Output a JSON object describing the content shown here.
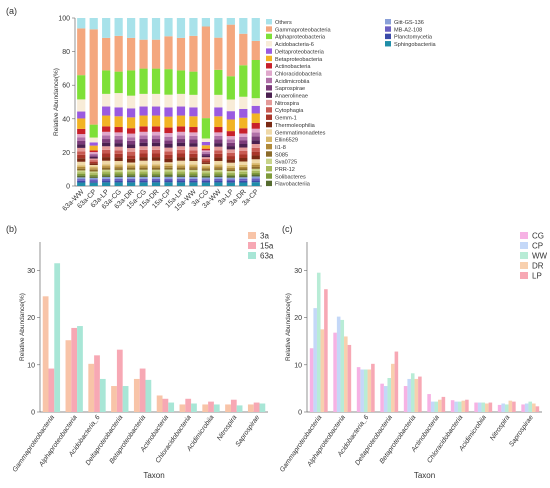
{
  "panels": {
    "a": "(a)",
    "b": "(b)",
    "c": "(c)"
  },
  "chart_data": [
    {
      "type": "bar",
      "stacked": true,
      "ylabel": "Relative Abundance(%)",
      "ylim": [
        0,
        100
      ],
      "yticks": [
        0,
        20,
        40,
        60,
        80,
        100
      ],
      "categories": [
        "63a-WW",
        "63a-CP",
        "63a-LP",
        "63a-CG",
        "63a-DR",
        "15a-CG",
        "15a-DR",
        "15a-CP",
        "15a-LP",
        "15a-WW",
        "3a-CG",
        "3a-WW",
        "3a-LP",
        "3a-DR",
        "3a-CP"
      ],
      "legend_left": [
        "Others",
        "Gammaproteobacteria",
        "Alphaproteobacteria",
        "Acidobacteria-6",
        "Deltaproteobacteria",
        "Betaproteobacteria",
        "Actinobacteria",
        "Chloracidobacteria",
        "Acidimicrobiia",
        "Saprospirae",
        "Anaerolineae",
        "Nitrospira",
        "Cytophagia",
        "Gemm-1",
        "Thermoleophilia",
        "Gemmatimonadetes",
        "Ellin6529",
        "Ii1-8",
        "S085",
        "Sva0725",
        "PRR-12",
        "Solibacteres",
        "Flavobacteriia"
      ],
      "legend_right": [
        "Gitt-GS-136",
        "MB-A2-108",
        "Planctomycetia",
        "Sphingobacteriia"
      ],
      "series": [
        {
          "name": "Sphingobacteriia",
          "color": "#1f8ea8",
          "values": [
            2,
            2,
            2,
            2,
            2,
            2,
            2,
            2,
            2,
            2,
            2,
            2,
            2,
            2,
            2
          ]
        },
        {
          "name": "Planctomycetia",
          "color": "#3a4aa8",
          "values": [
            1,
            1,
            1,
            1,
            1,
            1,
            1,
            1,
            1,
            1,
            1,
            1,
            1,
            1,
            1
          ]
        },
        {
          "name": "MB-A2-108",
          "color": "#6a5fc2",
          "values": [
            1,
            1,
            1,
            1,
            1,
            1,
            1,
            1,
            1,
            1,
            1,
            1,
            1,
            1,
            1
          ]
        },
        {
          "name": "Gitt-GS-136",
          "color": "#8aa0d8",
          "values": [
            1,
            1,
            1,
            1,
            1,
            1,
            1,
            1,
            1,
            1,
            1,
            1,
            1,
            1,
            1
          ]
        },
        {
          "name": "Flavobacteriia",
          "color": "#556b2f",
          "values": [
            1,
            1,
            1,
            1,
            1,
            1,
            1,
            1,
            1,
            1,
            1,
            1,
            1,
            1,
            1
          ]
        },
        {
          "name": "Solibacteres",
          "color": "#7e9a3a",
          "values": [
            1,
            1,
            1,
            1,
            1,
            1,
            1,
            1,
            1,
            1,
            1,
            1,
            1,
            1,
            1
          ]
        },
        {
          "name": "PRR-12",
          "color": "#a6b85a",
          "values": [
            1,
            1,
            1,
            1,
            1,
            1,
            1,
            1,
            1,
            1,
            1,
            1,
            1,
            1,
            1
          ]
        },
        {
          "name": "Sva0725",
          "color": "#c8d48a",
          "values": [
            1,
            1,
            1,
            1,
            1,
            1,
            1,
            1,
            1,
            1,
            1,
            1,
            1,
            1,
            1
          ]
        },
        {
          "name": "S085",
          "color": "#8b6b2a",
          "values": [
            1,
            1,
            1,
            1,
            1,
            1,
            1,
            1,
            1,
            1,
            1,
            1,
            1,
            1,
            1
          ]
        },
        {
          "name": "Ii1-8",
          "color": "#b08a3a",
          "values": [
            1,
            1,
            1,
            1,
            1,
            1,
            1,
            1,
            1,
            1,
            1,
            1,
            1,
            1,
            1
          ]
        },
        {
          "name": "Ellin6529",
          "color": "#d8b86a",
          "values": [
            1,
            1,
            1,
            1,
            1,
            1,
            1,
            1,
            1,
            1,
            1,
            1,
            1,
            1,
            1
          ]
        },
        {
          "name": "Gemmatimonadetes",
          "color": "#efd9a8",
          "values": [
            2,
            1,
            2,
            2,
            1,
            2,
            2,
            1,
            2,
            2,
            1,
            2,
            2,
            2,
            2
          ]
        },
        {
          "name": "Thermoleophilia",
          "color": "#7a2a14",
          "values": [
            2,
            1,
            2,
            2,
            2,
            2,
            2,
            2,
            2,
            2,
            1,
            2,
            2,
            2,
            2
          ]
        },
        {
          "name": "Gemm-1",
          "color": "#a8362a",
          "values": [
            2,
            1,
            2,
            2,
            2,
            2,
            2,
            2,
            2,
            2,
            1,
            2,
            2,
            2,
            2
          ]
        },
        {
          "name": "Cytophagia",
          "color": "#c85a52",
          "values": [
            2,
            1,
            2,
            2,
            2,
            2,
            2,
            2,
            2,
            2,
            1,
            2,
            2,
            2,
            2
          ]
        },
        {
          "name": "Nitrospira",
          "color": "#e49a98",
          "values": [
            2,
            1,
            2,
            2,
            2,
            2,
            2,
            2,
            2,
            2,
            1,
            2,
            2,
            2,
            2
          ]
        },
        {
          "name": "Anaerolineae",
          "color": "#4a2050",
          "values": [
            2,
            1,
            2,
            2,
            2,
            2,
            2,
            2,
            2,
            2,
            1,
            2,
            2,
            2,
            2
          ]
        },
        {
          "name": "Saprospirae",
          "color": "#7a3a78",
          "values": [
            2,
            1,
            2,
            2,
            2,
            2,
            2,
            2,
            2,
            2,
            1,
            2,
            2,
            2,
            2
          ]
        },
        {
          "name": "Acidimicrobiia",
          "color": "#b070a8",
          "values": [
            2,
            1,
            2,
            2,
            2,
            2,
            2,
            2,
            2,
            2,
            1,
            2,
            2,
            2,
            2
          ]
        },
        {
          "name": "Chloracidobacteria",
          "color": "#e0a8cc",
          "values": [
            2,
            1,
            2,
            2,
            2,
            2,
            2,
            2,
            2,
            2,
            1,
            2,
            2,
            2,
            2
          ]
        },
        {
          "name": "Actinobacteria",
          "color": "#c8202a",
          "values": [
            3,
            1,
            3,
            3,
            3,
            3,
            3,
            3,
            3,
            3,
            1,
            3,
            3,
            3,
            3
          ]
        },
        {
          "name": "Betaproteobacteria",
          "color": "#f2b424",
          "values": [
            6,
            3,
            6,
            6,
            6,
            6,
            6,
            6,
            6,
            6,
            2,
            6,
            7,
            6,
            5
          ]
        },
        {
          "name": "Deltaproteobacteria",
          "color": "#9a5ae0",
          "values": [
            4,
            2,
            5,
            5,
            5,
            5,
            5,
            5,
            5,
            5,
            2,
            5,
            5,
            5,
            4
          ]
        },
        {
          "name": "Acidobacteria-6",
          "color": "#f8ecd8",
          "values": [
            7,
            3,
            7,
            8,
            7,
            7,
            7,
            7,
            7,
            7,
            2,
            7,
            7,
            7,
            4
          ]
        },
        {
          "name": "Alphaproteobacteria",
          "color": "#7ee038",
          "values": [
            14,
            8,
            13,
            12,
            14,
            14,
            14,
            14,
            13,
            13,
            12,
            14,
            14,
            18,
            20
          ]
        },
        {
          "name": "Gammaproteobacteria",
          "color": "#f4a77e",
          "values": [
            27,
            59,
            18,
            20,
            18,
            16,
            16,
            18,
            18,
            20,
            54,
            18,
            31,
            18,
            10
          ]
        },
        {
          "name": "Others",
          "color": "#a8e2ea",
          "values": [
            6,
            7,
            11,
            10,
            11,
            12,
            12,
            10,
            11,
            10,
            5,
            11,
            4,
            9,
            12
          ]
        }
      ]
    },
    {
      "type": "bar",
      "xlabel": "Taxon",
      "ylabel": "Relative Abundance(%)",
      "ylim": [
        0,
        36
      ],
      "yticks": [
        0,
        10,
        20,
        30
      ],
      "categories": [
        "Gammaproteobacteria",
        "Alphaproteobacteria",
        "Acidobacteria_6",
        "Deltaproteobacteria",
        "Betaproteobacteria",
        "Actinobacteria",
        "Chloracidobacteria",
        "Acidimicrobiia",
        "Nitrospira",
        "Saprospirae"
      ],
      "series": [
        {
          "name": "3a",
          "color": "#f8c4a8",
          "values": [
            24.5,
            15.2,
            10.2,
            5.5,
            7.0,
            3.5,
            1.6,
            1.6,
            1.6,
            1.6
          ]
        },
        {
          "name": "15a",
          "color": "#f7a8b4",
          "values": [
            9.2,
            17.8,
            12.0,
            13.2,
            9.2,
            2.8,
            2.8,
            2.2,
            2.6,
            2.0
          ]
        },
        {
          "name": "63a",
          "color": "#a8e6d6",
          "values": [
            31.5,
            18.2,
            7.0,
            5.5,
            6.8,
            2.0,
            1.8,
            1.6,
            1.4,
            1.8
          ]
        }
      ]
    },
    {
      "type": "bar",
      "xlabel": "Taxon",
      "ylabel": "Relative Abundance(%)",
      "ylim": [
        0,
        36
      ],
      "yticks": [
        0,
        10,
        20,
        30
      ],
      "categories": [
        "Gammaproteobacteria",
        "Alphaproteobacteria",
        "Acidobacteria_6",
        "Deltaproteobacteria",
        "Betaproteobacteria",
        "Actinobacteria",
        "Chloracidobacteria",
        "Acidimicrobiia",
        "Nitrospira",
        "Saprospirae"
      ],
      "series": [
        {
          "name": "CG",
          "color": "#f6b2e4",
          "values": [
            13.5,
            16.8,
            9.5,
            6.0,
            5.5,
            3.8,
            2.5,
            2.0,
            1.5,
            1.6
          ]
        },
        {
          "name": "CP",
          "color": "#c4d8f8",
          "values": [
            22.0,
            20.2,
            9.0,
            5.5,
            7.0,
            2.2,
            2.2,
            2.0,
            1.8,
            1.8
          ]
        },
        {
          "name": "WW",
          "color": "#b8ecd6",
          "values": [
            29.5,
            19.5,
            9.0,
            7.2,
            8.2,
            2.2,
            2.2,
            2.0,
            1.6,
            2.2
          ]
        },
        {
          "name": "DR",
          "color": "#f8d0ae",
          "values": [
            17.5,
            16.0,
            9.0,
            10.2,
            7.0,
            2.6,
            2.4,
            1.8,
            2.4,
            1.8
          ]
        },
        {
          "name": "LP",
          "color": "#f7a8b4",
          "values": [
            26.0,
            14.2,
            10.2,
            12.8,
            7.5,
            3.2,
            2.6,
            2.0,
            2.2,
            1.2
          ]
        }
      ]
    }
  ]
}
